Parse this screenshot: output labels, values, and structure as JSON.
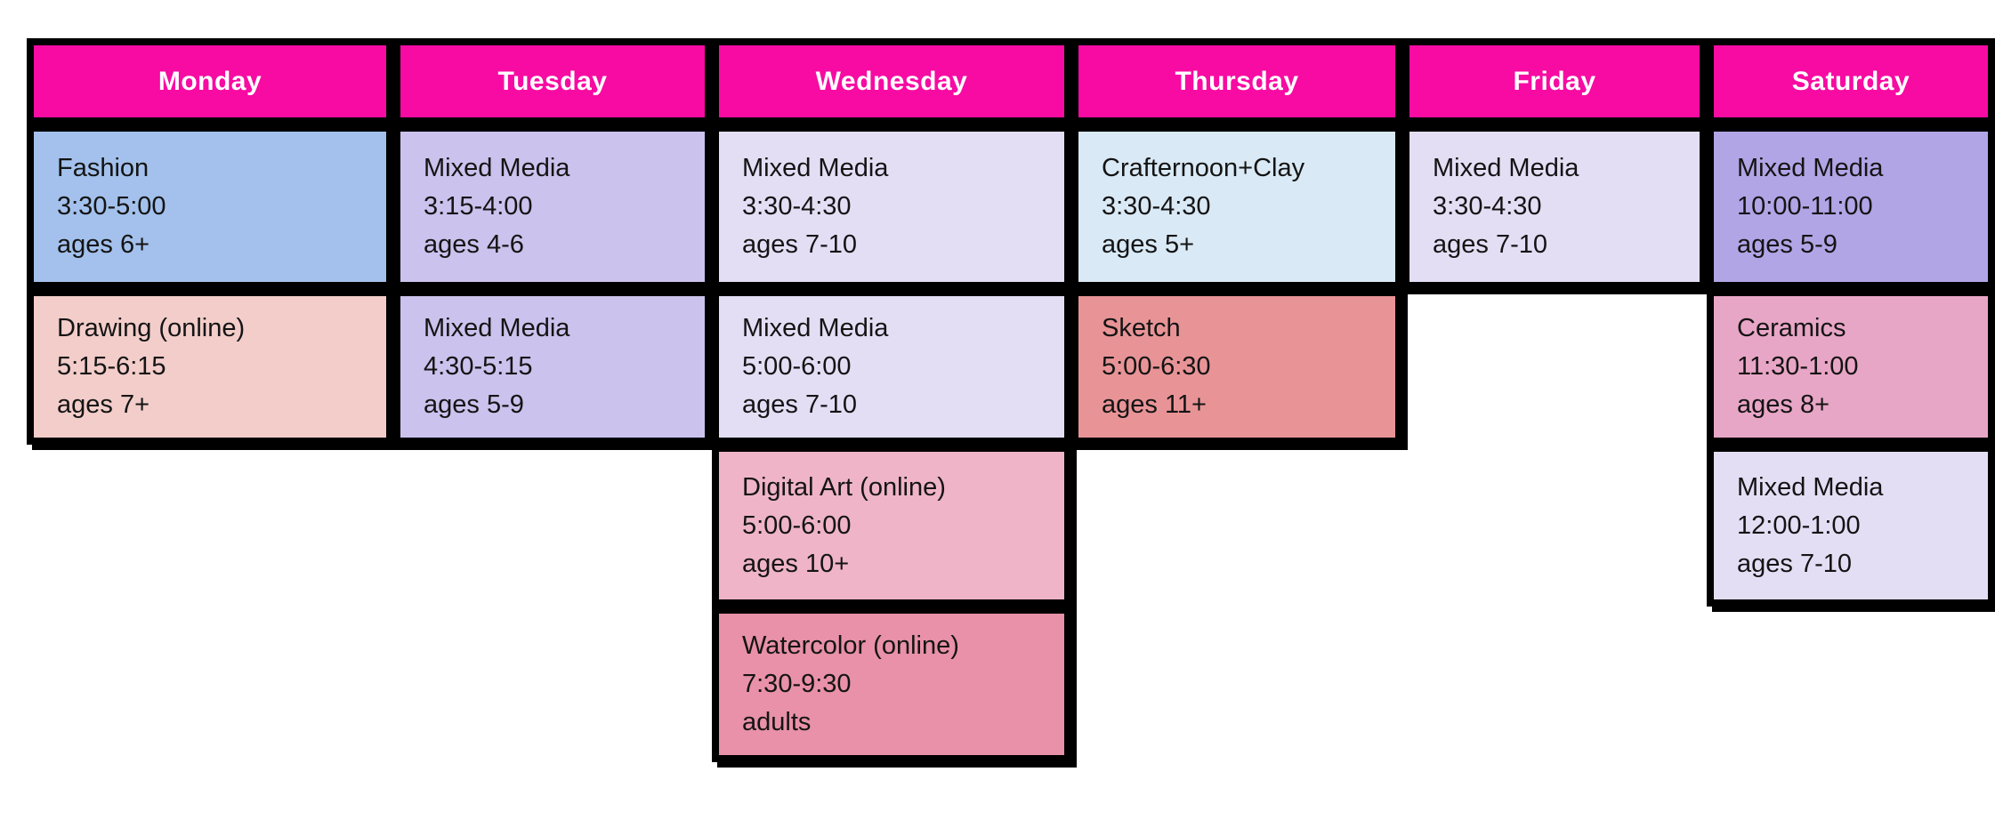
{
  "page": {
    "background_color": "#ffffff",
    "border_color": "#000000",
    "text_color": "#141414"
  },
  "table": {
    "header": {
      "bg": "#F70BA2",
      "text_color": "#ffffff"
    },
    "days": [
      {
        "label": "Monday",
        "classes": [
          {
            "row": 1,
            "title": "Fashion",
            "time": "3:30-5:00",
            "ages": "ages 6+",
            "bg": "#A3C1EC"
          },
          {
            "row": 2,
            "title": "Drawing (online)",
            "time": "5:15-6:15",
            "ages": "ages 7+",
            "bg": "#F2CDCA"
          }
        ]
      },
      {
        "label": "Tuesday",
        "classes": [
          {
            "row": 1,
            "title": "Mixed Media",
            "time": "3:15-4:00",
            "ages": "ages 4-6",
            "bg": "#CBC2ED"
          },
          {
            "row": 2,
            "title": "Mixed Media",
            "time": "4:30-5:15",
            "ages": "ages 5-9",
            "bg": "#CBC2ED"
          }
        ]
      },
      {
        "label": "Wednesday",
        "classes": [
          {
            "row": 1,
            "title": "Mixed Media",
            "time": "3:30-4:30",
            "ages": "ages 7-10",
            "bg": "#E4DEF5"
          },
          {
            "row": 2,
            "title": "Mixed Media",
            "time": "5:00-6:00",
            "ages": "ages 7-10",
            "bg": "#E4DEF5"
          },
          {
            "row": 3,
            "title": "Digital Art (online)",
            "time": "5:00-6:00",
            "ages": "ages 10+",
            "bg": "#EFB4C8"
          },
          {
            "row": 4,
            "title": "Watercolor (online)",
            "time": "7:30-9:30",
            "ages": "adults",
            "bg": "#E891A8"
          }
        ]
      },
      {
        "label": "Thursday",
        "classes": [
          {
            "row": 1,
            "title": "Crafternoon+Clay",
            "time": "3:30-4:30",
            "ages": "ages 5+",
            "bg": "#D9E9F5"
          },
          {
            "row": 2,
            "title": "Sketch",
            "time": "5:00-6:30",
            "ages": "ages 11+",
            "bg": "#E89497"
          }
        ]
      },
      {
        "label": "Friday",
        "classes": [
          {
            "row": 1,
            "title": "Mixed Media",
            "time": "3:30-4:30",
            "ages": "ages 7-10",
            "bg": "#E4DEF5"
          }
        ]
      },
      {
        "label": "Saturday",
        "classes": [
          {
            "row": 1,
            "title": "Mixed Media",
            "time": "10:00-11:00",
            "ages": "ages 5-9",
            "bg": "#B1A5E6"
          },
          {
            "row": 2,
            "title": "Ceramics",
            "time": "11:30-1:00",
            "ages": "ages 8+",
            "bg": "#E8A6C6"
          },
          {
            "row": 3,
            "title": "Mixed Media",
            "time": "12:00-1:00",
            "ages": "ages 7-10",
            "bg": "#E4DEF5"
          }
        ]
      }
    ]
  }
}
